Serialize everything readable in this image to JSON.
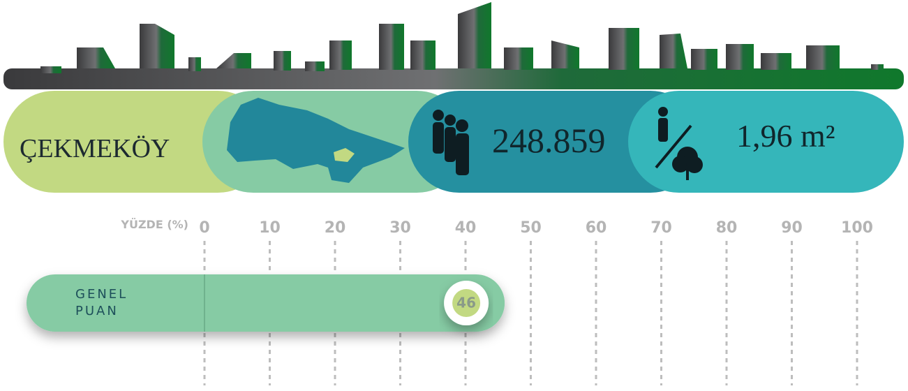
{
  "district": "ÇEKMEKÖY",
  "population": "248.859",
  "green_area_per_person": "1,96 m²",
  "chart_data": {
    "type": "bar",
    "orientation": "horizontal",
    "x_label": "YÜZDE (%)",
    "categories": [
      "GENEL PUAN"
    ],
    "values": [
      46
    ],
    "color": "#86cba4",
    "xlim": [
      0,
      100
    ],
    "xticks": [
      0,
      10,
      20,
      30,
      40,
      50,
      60,
      70,
      80,
      90,
      100
    ],
    "grid": true
  }
}
